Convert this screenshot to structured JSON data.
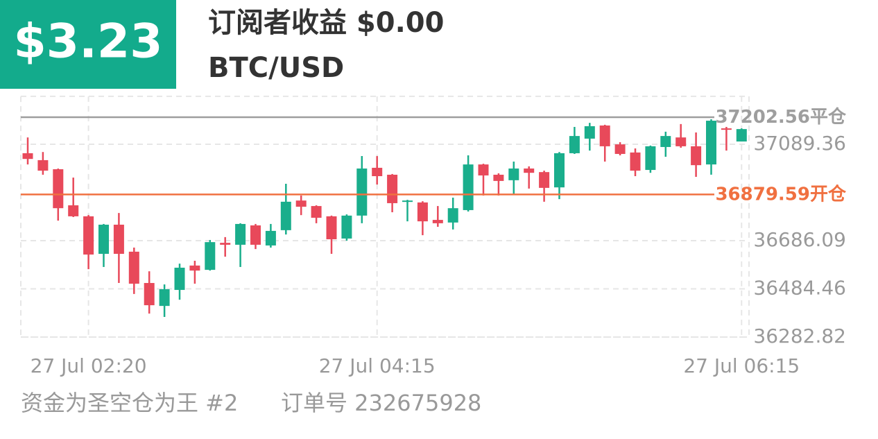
{
  "header": {
    "profit": "$3.23",
    "subscriber_profit": "订阅者收益 $0.00",
    "symbol": "BTC/USD"
  },
  "footer": {
    "signal": "资金为圣空仓为王 #2",
    "order": "订单号 232675928"
  },
  "chart_data": {
    "type": "candlestick",
    "categories": [
      null,
      null,
      null,
      null,
      "27 Jul  02:20",
      null,
      null,
      null,
      null,
      null,
      null,
      null,
      null,
      null,
      null,
      null,
      null,
      null,
      null,
      null,
      null,
      null,
      null,
      "27 Jul  04:15",
      null,
      null,
      null,
      null,
      null,
      null,
      null,
      null,
      null,
      null,
      null,
      null,
      null,
      null,
      null,
      null,
      null,
      null,
      null,
      null,
      null,
      null,
      null,
      "27 Jul  06:15"
    ],
    "open": [
      37052,
      37023,
      36985,
      36834,
      36788,
      36631,
      36753,
      36640,
      36509,
      36413,
      36480,
      36582,
      36564,
      36677,
      36669,
      36750,
      36666,
      36730,
      36854,
      36831,
      36788,
      36695,
      36791,
      36991,
      36962,
      36849,
      36846,
      36773,
      36762,
      36814,
      37005,
      36962,
      36939,
      36988,
      36973,
      36909,
      37052,
      37113,
      37168,
      37089,
      37055,
      36982,
      37078,
      37118,
      37081,
      37005,
      37156,
      37101
    ],
    "high": [
      37118,
      37057,
      36988,
      36950,
      36793,
      36756,
      36802,
      36657,
      36558,
      36503,
      36590,
      36602,
      36689,
      36701,
      36759,
      36756,
      36756,
      36924,
      36875,
      36834,
      36791,
      36796,
      37040,
      37040,
      36965,
      36857,
      36851,
      36831,
      36866,
      37043,
      37008,
      36968,
      37017,
      36997,
      36979,
      37057,
      37162,
      37179,
      37171,
      37098,
      37072,
      37084,
      37142,
      37174,
      37139,
      37194,
      37162,
      37156
    ],
    "low": [
      37005,
      36962,
      36770,
      36785,
      36567,
      36576,
      36509,
      36463,
      36381,
      36367,
      36439,
      36506,
      36561,
      36619,
      36576,
      36651,
      36657,
      36712,
      36793,
      36759,
      36631,
      36686,
      36759,
      36921,
      36805,
      36767,
      36709,
      36744,
      36733,
      36808,
      36875,
      36875,
      36880,
      36904,
      36849,
      36860,
      37049,
      37063,
      37017,
      37043,
      36956,
      36970,
      37037,
      37075,
      36953,
      36962,
      37063,
      37101
    ],
    "close": [
      37028,
      36979,
      36822,
      36788,
      36628,
      36753,
      36631,
      36506,
      36416,
      36483,
      36573,
      36561,
      36680,
      36669,
      36756,
      36669,
      36727,
      36849,
      36828,
      36782,
      36692,
      36791,
      36988,
      36956,
      36843,
      36854,
      36767,
      36759,
      36822,
      37005,
      36959,
      36936,
      36988,
      36970,
      36907,
      37052,
      37124,
      37165,
      37081,
      37049,
      36979,
      37081,
      37124,
      37081,
      37002,
      37188,
      37150,
      37153
    ],
    "up_color": "#1aae8c",
    "down_color": "#e8495a",
    "ylim": [
      36282.82,
      37290
    ],
    "yticks": [
      36282.82,
      36484.46,
      36686.09,
      37089.36
    ],
    "grid": true,
    "close_line": {
      "value": 37202.56,
      "label": "平仓",
      "color": "#9e9e9e"
    },
    "open_line": {
      "value": 36879.59,
      "label": "开仓",
      "color": "#f07040"
    }
  }
}
